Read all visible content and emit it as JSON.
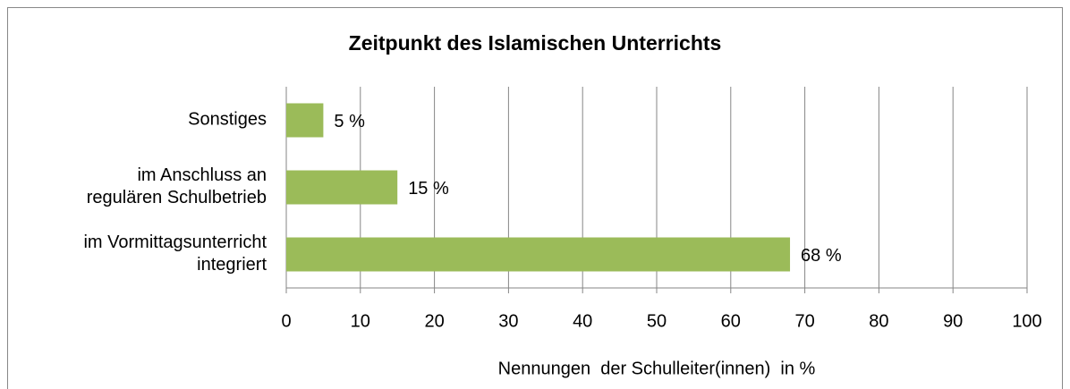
{
  "chart_data": {
    "type": "hbar",
    "title": "Zeitpunkt des Islamischen Unterrichts",
    "categories": [
      "Sonstiges",
      "im Anschluss an\nregulären Schulbetrieb",
      "im Vormittagsunterricht\nintegriert"
    ],
    "values": [
      5,
      15,
      68
    ],
    "value_labels": [
      "5 %",
      "15 %",
      "68 %"
    ],
    "color": "#9bbb59",
    "xlim": [
      0,
      100
    ],
    "xticks": [
      0,
      10,
      20,
      30,
      40,
      50,
      60,
      70,
      80,
      90,
      100
    ],
    "grid": true,
    "x_label": "Nennungen  der Schulleiter(innen)  in %"
  }
}
